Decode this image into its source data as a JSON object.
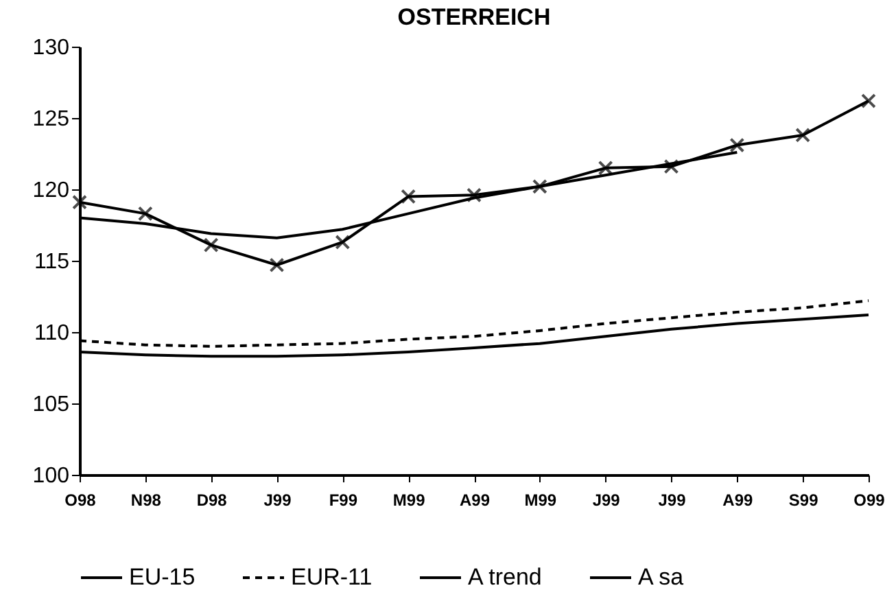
{
  "chart_data": {
    "type": "line",
    "title": "OSTERREICH",
    "categories": [
      "O98",
      "N98",
      "D98",
      "J99",
      "F99",
      "M99",
      "A99",
      "M99",
      "J99",
      "J99",
      "A99",
      "S99",
      "O99"
    ],
    "series": [
      {
        "name": "EU-15",
        "color": "#000000",
        "line_style": "solid",
        "values": [
          108.6,
          108.4,
          108.3,
          108.3,
          108.4,
          108.6,
          108.9,
          109.2,
          109.7,
          110.2,
          110.6,
          110.9,
          111.2
        ]
      },
      {
        "name": "EUR-11",
        "color": "#000000",
        "line_style": "dashed",
        "values": [
          109.4,
          109.1,
          109.0,
          109.1,
          109.2,
          109.5,
          109.7,
          110.1,
          110.6,
          111.0,
          111.4,
          111.7,
          112.2
        ]
      },
      {
        "name": "A trend",
        "color": "#000000",
        "line_style": "solid",
        "values": [
          118.0,
          117.6,
          116.9,
          116.6,
          117.2,
          118.3,
          119.4,
          120.2,
          121.0,
          121.8,
          122.6,
          null,
          null
        ]
      },
      {
        "name": "A sa",
        "color": "#000000",
        "line_style": "solid",
        "marker": "cross",
        "values": [
          119.1,
          118.3,
          116.1,
          114.7,
          116.3,
          119.5,
          119.6,
          120.2,
          121.5,
          121.6,
          123.1,
          123.8,
          126.2
        ]
      }
    ],
    "ylim": [
      100,
      130
    ],
    "yticks": [
      100,
      105,
      110,
      115,
      120,
      125,
      130
    ],
    "grid": false,
    "legend": "bottom"
  }
}
